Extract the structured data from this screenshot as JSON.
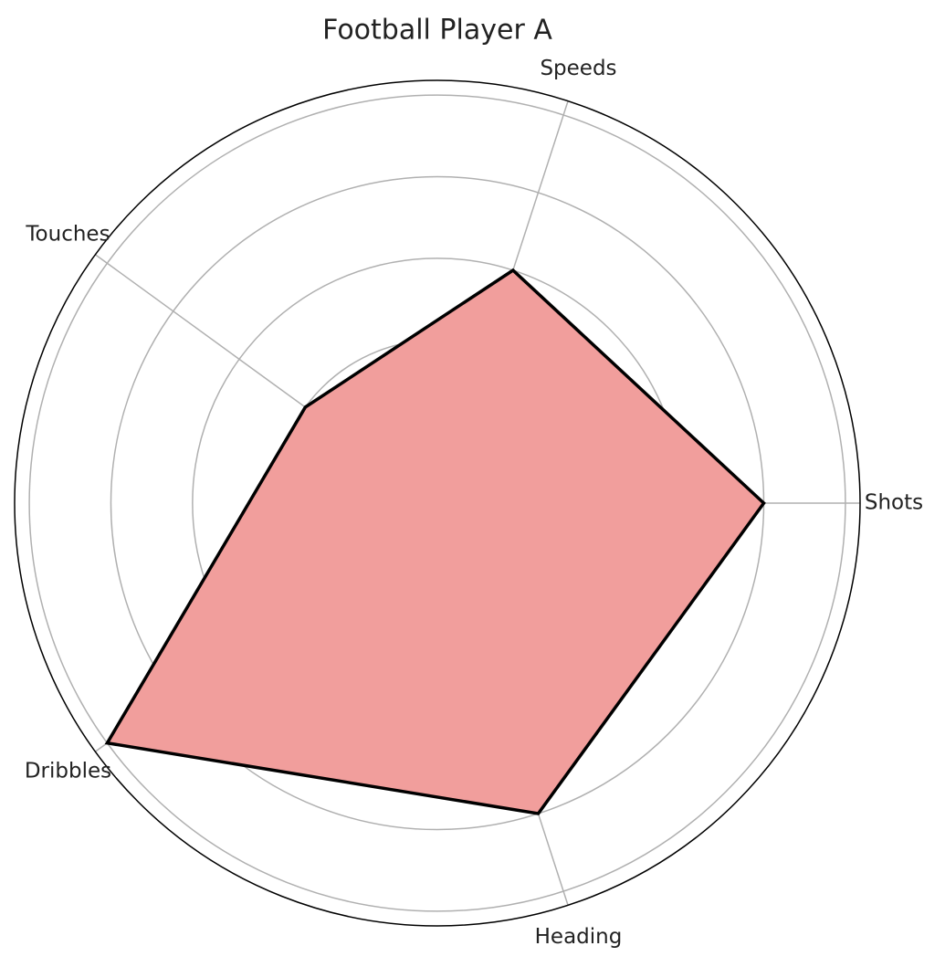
{
  "chart_data": {
    "type": "radar",
    "title": "Football Player A",
    "categories": [
      "Shots",
      "Speeds",
      "Touches",
      "Dribbles",
      "Heading"
    ],
    "values": [
      4,
      3,
      2,
      5,
      4
    ],
    "color": "#f19e9c",
    "line_color": "#000000",
    "ylim": [
      0,
      5.18
    ],
    "yticks": [
      1,
      2,
      3,
      4,
      5
    ],
    "grid": true
  }
}
